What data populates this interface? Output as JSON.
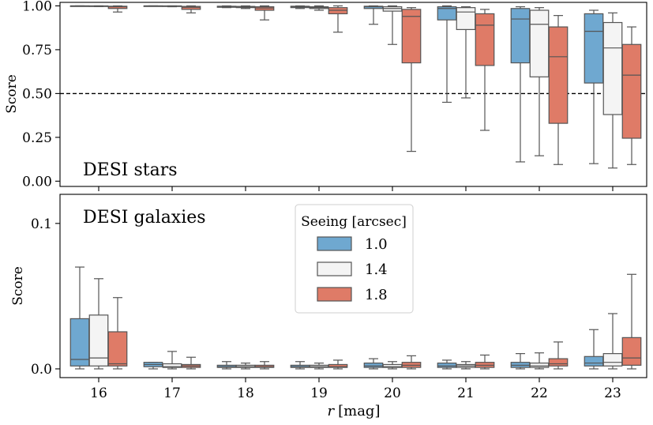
{
  "chart_data": {
    "type": "boxplot",
    "x": [
      "16",
      "17",
      "18",
      "19",
      "20",
      "21",
      "22",
      "23"
    ],
    "xlabel_var": "r",
    "xlabel_unit": "[mag]",
    "legend": {
      "title": "Seeing [arcsec]",
      "placement": "center",
      "entries": [
        {
          "label": "1.0",
          "color": "#6fa8d0"
        },
        {
          "label": "1.4",
          "color": "#f4f4f4"
        },
        {
          "label": "1.8",
          "color": "#df7b67"
        }
      ]
    },
    "panels": [
      {
        "name": "DESI stars",
        "ylabel": "Score",
        "ylim": [
          -0.03,
          1.02
        ],
        "yticks": [
          "0.00",
          "0.25",
          "0.50",
          "0.75",
          "1.00"
        ],
        "ytick_values": [
          0,
          0.25,
          0.5,
          0.75,
          1.0
        ],
        "threshold": 0.5,
        "series": [
          {
            "name": "1.0",
            "boxes": [
              {
                "wl": 0.998,
                "q1": 0.999,
                "med": 1.0,
                "q3": 1.0,
                "wh": 1.0
              },
              {
                "wl": 0.998,
                "q1": 0.999,
                "med": 1.0,
                "q3": 1.0,
                "wh": 1.0
              },
              {
                "wl": 0.99,
                "q1": 0.992,
                "med": 0.996,
                "q3": 0.998,
                "wh": 1.0
              },
              {
                "wl": 0.985,
                "q1": 0.99,
                "med": 0.995,
                "q3": 0.998,
                "wh": 1.0
              },
              {
                "wl": 0.895,
                "q1": 0.985,
                "med": 0.995,
                "q3": 0.998,
                "wh": 1.0
              },
              {
                "wl": 0.45,
                "q1": 0.92,
                "med": 0.985,
                "q3": 0.995,
                "wh": 1.0
              },
              {
                "wl": 0.11,
                "q1": 0.675,
                "med": 0.925,
                "q3": 0.985,
                "wh": 0.995
              },
              {
                "wl": 0.1,
                "q1": 0.56,
                "med": 0.855,
                "q3": 0.955,
                "wh": 0.975
              }
            ]
          },
          {
            "name": "1.4",
            "boxes": [
              {
                "wl": 0.996,
                "q1": 0.998,
                "med": 0.999,
                "q3": 1.0,
                "wh": 1.0
              },
              {
                "wl": 0.995,
                "q1": 0.997,
                "med": 0.999,
                "q3": 1.0,
                "wh": 1.0
              },
              {
                "wl": 0.985,
                "q1": 0.99,
                "med": 0.994,
                "q3": 0.997,
                "wh": 1.0
              },
              {
                "wl": 0.975,
                "q1": 0.985,
                "med": 0.99,
                "q3": 0.995,
                "wh": 1.0
              },
              {
                "wl": 0.78,
                "q1": 0.97,
                "med": 0.985,
                "q3": 0.995,
                "wh": 1.0
              },
              {
                "wl": 0.475,
                "q1": 0.865,
                "med": 0.965,
                "q3": 0.99,
                "wh": 0.995
              },
              {
                "wl": 0.145,
                "q1": 0.595,
                "med": 0.895,
                "q3": 0.975,
                "wh": 0.99
              },
              {
                "wl": 0.075,
                "q1": 0.38,
                "med": 0.76,
                "q3": 0.905,
                "wh": 0.96
              }
            ]
          },
          {
            "name": "1.8",
            "boxes": [
              {
                "wl": 0.965,
                "q1": 0.985,
                "med": 0.995,
                "q3": 0.998,
                "wh": 1.0
              },
              {
                "wl": 0.96,
                "q1": 0.98,
                "med": 0.992,
                "q3": 0.997,
                "wh": 1.0
              },
              {
                "wl": 0.92,
                "q1": 0.975,
                "med": 0.988,
                "q3": 0.995,
                "wh": 1.0
              },
              {
                "wl": 0.85,
                "q1": 0.955,
                "med": 0.975,
                "q3": 0.99,
                "wh": 1.0
              },
              {
                "wl": 0.17,
                "q1": 0.675,
                "med": 0.94,
                "q3": 0.98,
                "wh": 0.99
              },
              {
                "wl": 0.29,
                "q1": 0.66,
                "med": 0.89,
                "q3": 0.955,
                "wh": 0.98
              },
              {
                "wl": 0.095,
                "q1": 0.33,
                "med": 0.71,
                "q3": 0.88,
                "wh": 0.945
              },
              {
                "wl": 0.095,
                "q1": 0.245,
                "med": 0.605,
                "q3": 0.78,
                "wh": 0.88
              }
            ]
          }
        ]
      },
      {
        "name": "DESI galaxies",
        "ylabel": "Score",
        "ylim": [
          -0.006,
          0.12
        ],
        "yticks": [
          "0.0",
          "0.1"
        ],
        "ytick_values": [
          0,
          0.1
        ],
        "series": [
          {
            "name": "1.0",
            "boxes": [
              {
                "wl": 0.0,
                "q1": 0.002,
                "med": 0.0065,
                "q3": 0.0345,
                "wh": 0.07
              },
              {
                "wl": 0.0,
                "q1": 0.0015,
                "med": 0.003,
                "q3": 0.0045,
                "wh": 0.0045
              },
              {
                "wl": 0.0,
                "q1": 0.001,
                "med": 0.0015,
                "q3": 0.0025,
                "wh": 0.005
              },
              {
                "wl": 0.0,
                "q1": 0.001,
                "med": 0.0015,
                "q3": 0.0025,
                "wh": 0.005
              },
              {
                "wl": 0.0,
                "q1": 0.001,
                "med": 0.002,
                "q3": 0.004,
                "wh": 0.007
              },
              {
                "wl": 0.0,
                "q1": 0.001,
                "med": 0.002,
                "q3": 0.004,
                "wh": 0.006
              },
              {
                "wl": 0.0,
                "q1": 0.001,
                "med": 0.0025,
                "q3": 0.0045,
                "wh": 0.0105
              },
              {
                "wl": 0.0,
                "q1": 0.002,
                "med": 0.004,
                "q3": 0.0085,
                "wh": 0.027
              }
            ]
          },
          {
            "name": "1.4",
            "boxes": [
              {
                "wl": 0.0,
                "q1": 0.002,
                "med": 0.0075,
                "q3": 0.037,
                "wh": 0.062
              },
              {
                "wl": 0.0,
                "q1": 0.001,
                "med": 0.0015,
                "q3": 0.0035,
                "wh": 0.012
              },
              {
                "wl": 0.0,
                "q1": 0.001,
                "med": 0.0015,
                "q3": 0.0025,
                "wh": 0.004
              },
              {
                "wl": 0.0,
                "q1": 0.001,
                "med": 0.0015,
                "q3": 0.0025,
                "wh": 0.004
              },
              {
                "wl": 0.0,
                "q1": 0.001,
                "med": 0.0015,
                "q3": 0.003,
                "wh": 0.005
              },
              {
                "wl": 0.0,
                "q1": 0.001,
                "med": 0.002,
                "q3": 0.003,
                "wh": 0.005
              },
              {
                "wl": 0.0,
                "q1": 0.001,
                "med": 0.002,
                "q3": 0.004,
                "wh": 0.011
              },
              {
                "wl": 0.0,
                "q1": 0.002,
                "med": 0.0045,
                "q3": 0.0105,
                "wh": 0.038
              }
            ]
          },
          {
            "name": "1.8",
            "boxes": [
              {
                "wl": 0.0,
                "q1": 0.002,
                "med": 0.0035,
                "q3": 0.0255,
                "wh": 0.049
              },
              {
                "wl": 0.0,
                "q1": 0.001,
                "med": 0.002,
                "q3": 0.003,
                "wh": 0.008
              },
              {
                "wl": 0.0,
                "q1": 0.001,
                "med": 0.0015,
                "q3": 0.0025,
                "wh": 0.005
              },
              {
                "wl": 0.0,
                "q1": 0.001,
                "med": 0.0015,
                "q3": 0.003,
                "wh": 0.006
              },
              {
                "wl": 0.0,
                "q1": 0.001,
                "med": 0.0025,
                "q3": 0.0045,
                "wh": 0.009
              },
              {
                "wl": 0.0,
                "q1": 0.001,
                "med": 0.0025,
                "q3": 0.0045,
                "wh": 0.0095
              },
              {
                "wl": 0.0,
                "q1": 0.002,
                "med": 0.0035,
                "q3": 0.007,
                "wh": 0.0185
              },
              {
                "wl": 0.0,
                "q1": 0.0025,
                "med": 0.0075,
                "q3": 0.0215,
                "wh": 0.065
              }
            ]
          }
        ]
      }
    ]
  }
}
